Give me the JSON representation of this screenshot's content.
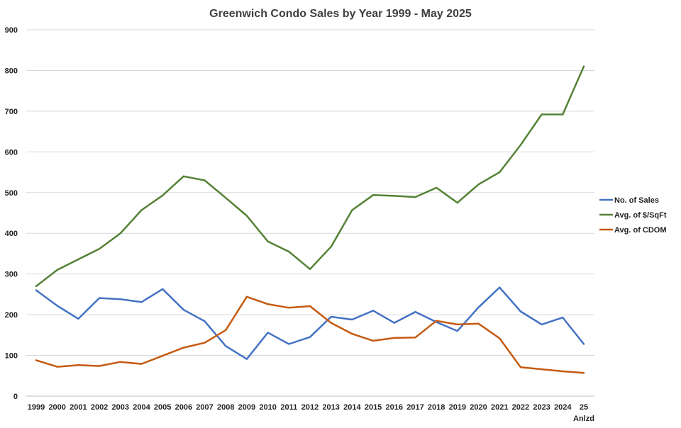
{
  "chart_data": {
    "type": "line",
    "title": "Greenwich Condo Sales by Year 1999 - May 2025",
    "xlabel": "",
    "ylabel": "",
    "ylim": [
      0,
      900
    ],
    "yticks": [
      0,
      100,
      200,
      300,
      400,
      500,
      600,
      700,
      800,
      900
    ],
    "grid": true,
    "legend_position": "right",
    "categories": [
      "1999",
      "2000",
      "2001",
      "2002",
      "2003",
      "2004",
      "2005",
      "2006",
      "2007",
      "2008",
      "2009",
      "2010",
      "2011",
      "2012",
      "2013",
      "2014",
      "2015",
      "2016",
      "2017",
      "2018",
      "2019",
      "2020",
      "2021",
      "2022",
      "2023",
      "2024",
      "25 Anlzd"
    ],
    "category_labels": [
      [
        "1999"
      ],
      [
        "2000"
      ],
      [
        "2001"
      ],
      [
        "2002"
      ],
      [
        "2003"
      ],
      [
        "2004"
      ],
      [
        "2005"
      ],
      [
        "2006"
      ],
      [
        "2007"
      ],
      [
        "2008"
      ],
      [
        "2009"
      ],
      [
        "2010"
      ],
      [
        "2011"
      ],
      [
        "2012"
      ],
      [
        "2013"
      ],
      [
        "2014"
      ],
      [
        "2015"
      ],
      [
        "2016"
      ],
      [
        "2017"
      ],
      [
        "2018"
      ],
      [
        "2019"
      ],
      [
        "2020"
      ],
      [
        "2021"
      ],
      [
        "2022"
      ],
      [
        "2023"
      ],
      [
        "2024"
      ],
      [
        "25",
        "Anlzd"
      ]
    ],
    "series": [
      {
        "name": "No. of Sales",
        "color": "#4472c4",
        "values": [
          260,
          222,
          190,
          241,
          238,
          231,
          263,
          212,
          184,
          123,
          91,
          156,
          128,
          145,
          195,
          188,
          210,
          180,
          207,
          182,
          160,
          218,
          267,
          208,
          176,
          193,
          128
        ]
      },
      {
        "name": "Avg. of $/SqFt",
        "color": "#548235",
        "values": [
          270,
          310,
          336,
          362,
          400,
          457,
          493,
          540,
          530,
          487,
          443,
          380,
          355,
          312,
          367,
          457,
          494,
          492,
          489,
          512,
          475,
          520,
          550,
          617,
          692,
          692,
          810
        ]
      },
      {
        "name": "Avg. of CDOM",
        "color": "#c55a11",
        "values": [
          88,
          72,
          76,
          74,
          84,
          79,
          99,
          119,
          131,
          162,
          244,
          226,
          217,
          221,
          180,
          153,
          136,
          143,
          144,
          185,
          176,
          178,
          142,
          71,
          66,
          61,
          57
        ]
      }
    ]
  }
}
